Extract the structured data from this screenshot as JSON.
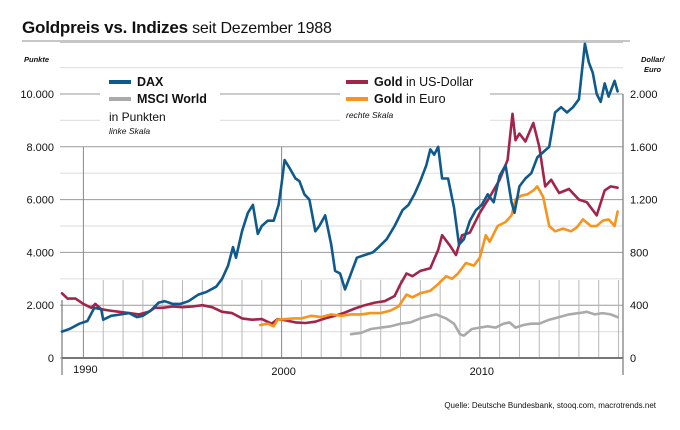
{
  "header": {
    "title_bold": "Goldpreis vs. Indizes",
    "title_rest": " seit Dezember 1988"
  },
  "source": "Quelle: Deutsche Bundesbank, stooq.com, macrotrends.net",
  "colors": {
    "dax": "#0f5a8c",
    "msci": "#aaaaaa",
    "gold_usd": "#a3244a",
    "gold_eur": "#f7941d",
    "grid_major": "#9a9a9a",
    "grid_minor": "#e2e2e2",
    "axis": "#777777"
  },
  "legend": {
    "left": {
      "items": [
        {
          "key": "dax",
          "label": "DAX"
        },
        {
          "key": "msci",
          "label": "MSCI World"
        }
      ],
      "unit": "in Punkten",
      "scale": "linke Skala"
    },
    "right": {
      "items": [
        {
          "key": "gold_usd",
          "label_bold": "Gold",
          "label_rest": " in US-Dollar"
        },
        {
          "key": "gold_eur",
          "label_bold": "Gold",
          "label_rest": " in Euro"
        }
      ],
      "scale": "rechte Skala"
    }
  },
  "chart_data": {
    "type": "line",
    "title": "Goldpreis vs. Indizes seit Dezember 1988",
    "xlabel": "",
    "ylabel_left": "Punkte",
    "ylabel_right": "Dollar/ Euro",
    "xlim": [
      1988.9,
      2017.3
    ],
    "x_tick_labels": [
      {
        "year": 1990,
        "label": "1990"
      },
      {
        "year": 2000,
        "label": "2000"
      },
      {
        "year": 2010,
        "label": "2010"
      }
    ],
    "ylim_left": [
      0,
      10500
    ],
    "ylim_right": [
      0,
      2100
    ],
    "y_ticks_left": [
      {
        "value": 0,
        "label": "0"
      },
      {
        "value": 2000,
        "label": "2.000"
      },
      {
        "value": 4000,
        "label": "4.000"
      },
      {
        "value": 6000,
        "label": "6.000"
      },
      {
        "value": 8000,
        "label": "8.000"
      },
      {
        "value": 10000,
        "label": "10.000"
      }
    ],
    "y_ticks_right": [
      {
        "value": 0,
        "label": "0"
      },
      {
        "value": 400,
        "label": "400"
      },
      {
        "value": 800,
        "label": "800"
      },
      {
        "value": 1200,
        "label": "1.200"
      },
      {
        "value": 1600,
        "label": "1.600"
      },
      {
        "value": 2000,
        "label": "2.000"
      }
    ],
    "grid": true,
    "legend_position": "top",
    "series": [
      {
        "name": "DAX",
        "key": "dax",
        "axis": "left",
        "x": [
          1988.92,
          1989.3,
          1989.8,
          1990.2,
          1990.55,
          1990.9,
          1991.0,
          1991.4,
          1991.9,
          1992.3,
          1992.7,
          1993.0,
          1993.4,
          1993.8,
          1994.1,
          1994.5,
          1994.9,
          1995.3,
          1995.8,
          1996.2,
          1996.7,
          1997.0,
          1997.3,
          1997.55,
          1997.7,
          1997.85,
          1998.0,
          1998.3,
          1998.55,
          1998.8,
          1999.0,
          1999.3,
          1999.6,
          1999.85,
          2000.0,
          2000.15,
          2000.4,
          2000.7,
          2000.9,
          2001.15,
          2001.4,
          2001.7,
          2001.9,
          2002.2,
          2002.5,
          2002.7,
          2002.95,
          2003.2,
          2003.5,
          2003.8,
          2004.2,
          2004.6,
          2004.9,
          2005.3,
          2005.7,
          2006.1,
          2006.4,
          2006.7,
          2007.0,
          2007.3,
          2007.5,
          2007.7,
          2007.9,
          2008.1,
          2008.4,
          2008.7,
          2008.95,
          2009.2,
          2009.5,
          2009.8,
          2010.1,
          2010.4,
          2010.7,
          2011.0,
          2011.3,
          2011.6,
          2011.75,
          2012.0,
          2012.3,
          2012.6,
          2012.9,
          2013.2,
          2013.5,
          2013.8,
          2014.1,
          2014.4,
          2014.7,
          2015.0,
          2015.3,
          2015.5,
          2015.7,
          2015.9,
          2016.1,
          2016.3,
          2016.5,
          2016.8,
          2016.95
        ],
        "y": [
          1000,
          1100,
          1300,
          1400,
          1900,
          1850,
          1450,
          1600,
          1650,
          1700,
          1550,
          1600,
          1800,
          2100,
          2150,
          2050,
          2050,
          2150,
          2400,
          2500,
          2700,
          3000,
          3500,
          4200,
          3800,
          4300,
          4800,
          5500,
          5800,
          4700,
          5000,
          5200,
          5200,
          5800,
          6600,
          7500,
          7200,
          6800,
          6700,
          6200,
          6000,
          4800,
          5000,
          5400,
          4300,
          3300,
          3200,
          2600,
          3200,
          3800,
          3900,
          4000,
          4200,
          4500,
          5000,
          5600,
          5800,
          6200,
          6700,
          7300,
          7900,
          7700,
          8000,
          6800,
          6800,
          5700,
          4300,
          4500,
          5200,
          5600,
          5800,
          6200,
          5900,
          6900,
          7300,
          5900,
          5500,
          6500,
          6800,
          7000,
          7600,
          7800,
          8000,
          9300,
          9500,
          9300,
          9500,
          9800,
          11900,
          11200,
          10800,
          10000,
          9700,
          10400,
          9900,
          10500,
          10100
        ]
      },
      {
        "name": "MSCI World",
        "key": "msci",
        "axis": "left",
        "x": [
          2003.5,
          2004.0,
          2004.5,
          2005.0,
          2005.5,
          2006.0,
          2006.5,
          2007.0,
          2007.5,
          2007.8,
          2008.3,
          2008.7,
          2009.0,
          2009.2,
          2009.6,
          2010.0,
          2010.4,
          2010.8,
          2011.2,
          2011.5,
          2011.8,
          2012.2,
          2012.6,
          2013.0,
          2013.5,
          2014.0,
          2014.5,
          2015.0,
          2015.4,
          2015.8,
          2016.2,
          2016.6,
          2016.95
        ],
        "y": [
          900,
          950,
          1100,
          1150,
          1200,
          1300,
          1350,
          1500,
          1600,
          1650,
          1500,
          1300,
          900,
          850,
          1100,
          1150,
          1200,
          1150,
          1300,
          1350,
          1150,
          1250,
          1300,
          1300,
          1450,
          1550,
          1650,
          1700,
          1750,
          1650,
          1700,
          1650,
          1550
        ]
      },
      {
        "name": "Gold in US-Dollar",
        "key": "gold_usd",
        "axis": "right",
        "x": [
          1988.92,
          1989.2,
          1989.6,
          1990.0,
          1990.4,
          1990.6,
          1990.9,
          1991.3,
          1991.8,
          1992.3,
          1992.8,
          1993.3,
          1993.6,
          1994.0,
          1994.5,
          1995.0,
          1995.5,
          1996.0,
          1996.5,
          1997.0,
          1997.5,
          1998.0,
          1998.5,
          1999.0,
          1999.5,
          1999.8,
          2000.2,
          2000.7,
          2001.2,
          2001.7,
          2002.2,
          2002.7,
          2003.2,
          2003.7,
          2004.2,
          2004.7,
          2005.2,
          2005.7,
          2006.0,
          2006.3,
          2006.6,
          2007.0,
          2007.5,
          2007.9,
          2008.1,
          2008.5,
          2008.8,
          2009.1,
          2009.5,
          2010.0,
          2010.5,
          2011.0,
          2011.4,
          2011.65,
          2011.8,
          2012.0,
          2012.3,
          2012.7,
          2013.0,
          2013.3,
          2013.6,
          2014.0,
          2014.5,
          2015.0,
          2015.4,
          2015.9,
          2016.3,
          2016.6,
          2016.95
        ],
        "y": [
          490,
          450,
          450,
          410,
          380,
          410,
          370,
          360,
          350,
          340,
          330,
          350,
          380,
          380,
          390,
          385,
          390,
          400,
          385,
          350,
          340,
          300,
          290,
          295,
          260,
          295,
          285,
          270,
          265,
          275,
          300,
          320,
          345,
          375,
          400,
          420,
          430,
          470,
          560,
          640,
          620,
          660,
          680,
          820,
          930,
          850,
          780,
          930,
          950,
          1100,
          1220,
          1350,
          1500,
          1850,
          1650,
          1700,
          1640,
          1780,
          1600,
          1300,
          1350,
          1250,
          1280,
          1200,
          1180,
          1080,
          1270,
          1300,
          1290
        ]
      },
      {
        "name": "Gold in Euro",
        "key": "gold_eur",
        "axis": "right",
        "x": [
          1998.92,
          1999.3,
          1999.6,
          1999.8,
          2000.2,
          2000.6,
          2001.0,
          2001.5,
          2002.0,
          2002.5,
          2003.0,
          2003.5,
          2004.0,
          2004.5,
          2005.0,
          2005.5,
          2005.9,
          2006.3,
          2006.6,
          2007.0,
          2007.5,
          2007.9,
          2008.3,
          2008.6,
          2008.9,
          2009.3,
          2009.7,
          2010.0,
          2010.3,
          2010.5,
          2010.9,
          2011.3,
          2011.6,
          2011.8,
          2012.1,
          2012.4,
          2012.7,
          2012.9,
          2013.2,
          2013.5,
          2013.8,
          2014.2,
          2014.6,
          2014.9,
          2015.2,
          2015.6,
          2015.9,
          2016.2,
          2016.5,
          2016.8,
          2016.95
        ],
        "y": [
          250,
          260,
          240,
          290,
          295,
          300,
          300,
          320,
          310,
          330,
          320,
          330,
          330,
          340,
          340,
          360,
          390,
          480,
          460,
          490,
          510,
          560,
          620,
          600,
          640,
          720,
          700,
          760,
          930,
          880,
          1000,
          1030,
          1080,
          1200,
          1230,
          1240,
          1270,
          1300,
          1220,
          1000,
          960,
          980,
          960,
          990,
          1050,
          1000,
          1000,
          1040,
          1050,
          1000,
          1110
        ]
      }
    ]
  }
}
